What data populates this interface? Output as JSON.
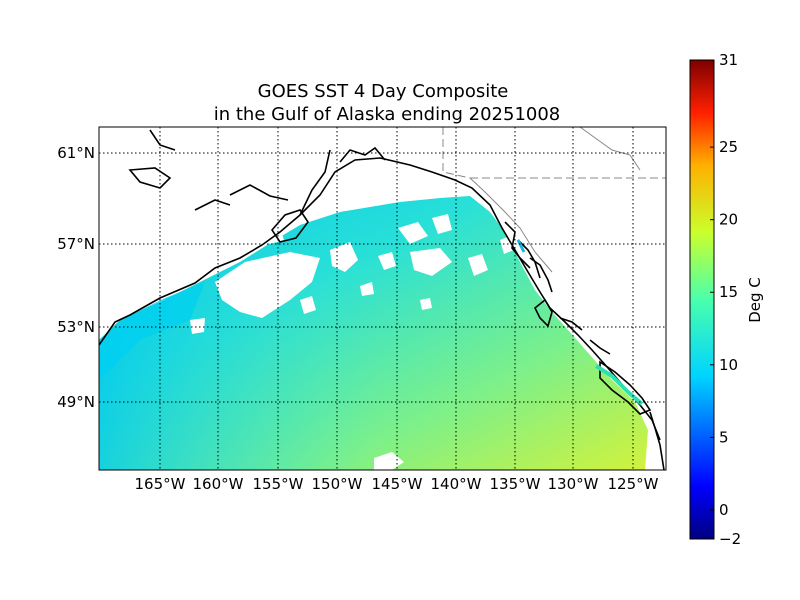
{
  "figure": {
    "title_line1": "GOES SST 4 Day Composite",
    "title_line2": "in the Gulf of Alaska ending 20251008"
  },
  "map": {
    "projection": "lat-lon",
    "lon_range": [
      -170,
      -122
    ],
    "lat_range": [
      45,
      62
    ],
    "lat_labels": [
      "61°N",
      "57°N",
      "53°N",
      "49°N"
    ],
    "lon_labels": [
      "165°W",
      "160°W",
      "155°W",
      "150°W",
      "145°W",
      "140°W",
      "135°W",
      "130°W",
      "125°W"
    ],
    "grid": "dotted"
  },
  "colorbar": {
    "label": "Deg C",
    "tick_labels": [
      "31",
      "25",
      "20",
      "15",
      "10",
      "5",
      "0",
      "−2"
    ],
    "range": [
      -2,
      31
    ],
    "colormap": "jet"
  },
  "colors": {
    "land": "#ffffff",
    "cloud_gap": "#ffffff",
    "coast": "#000000",
    "border": "#888888",
    "sst_cold": "#00c8e8",
    "sst_mid": "#2ee6c8",
    "sst_warm": "#b8f24a",
    "sst_warmest": "#d6f23a"
  }
}
